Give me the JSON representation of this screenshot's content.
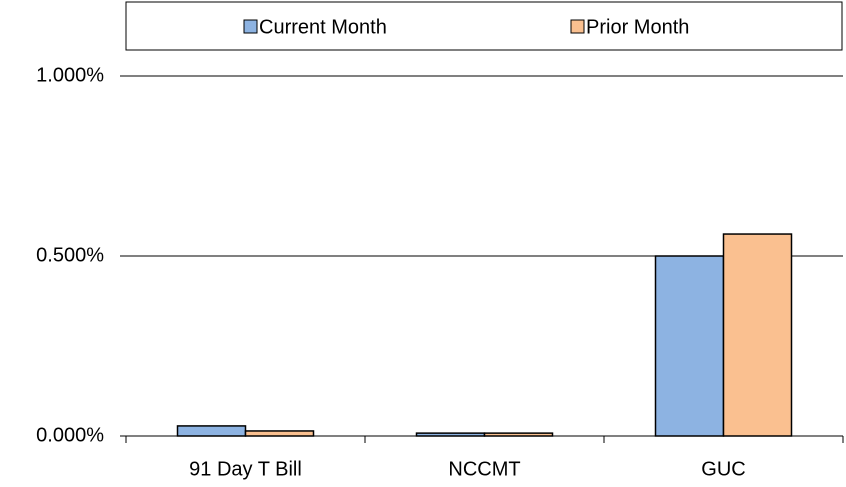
{
  "chart_data": {
    "type": "bar",
    "categories": [
      "91 Day T Bill",
      "NCCMT",
      "GUC"
    ],
    "series": [
      {
        "name": "Current Month",
        "color": "#8db3e2",
        "values": [
          0.028,
          0.008,
          0.5
        ]
      },
      {
        "name": "Prior Month",
        "color": "#fac090",
        "values": [
          0.014,
          0.008,
          0.561
        ]
      }
    ],
    "ylim": [
      0,
      1
    ],
    "yticks": [
      {
        "value": 0,
        "label": "0.000%"
      },
      {
        "value": 0.5,
        "label": "0.500%"
      },
      {
        "value": 1,
        "label": "1.000%"
      }
    ],
    "grid": true,
    "legend": "top"
  }
}
